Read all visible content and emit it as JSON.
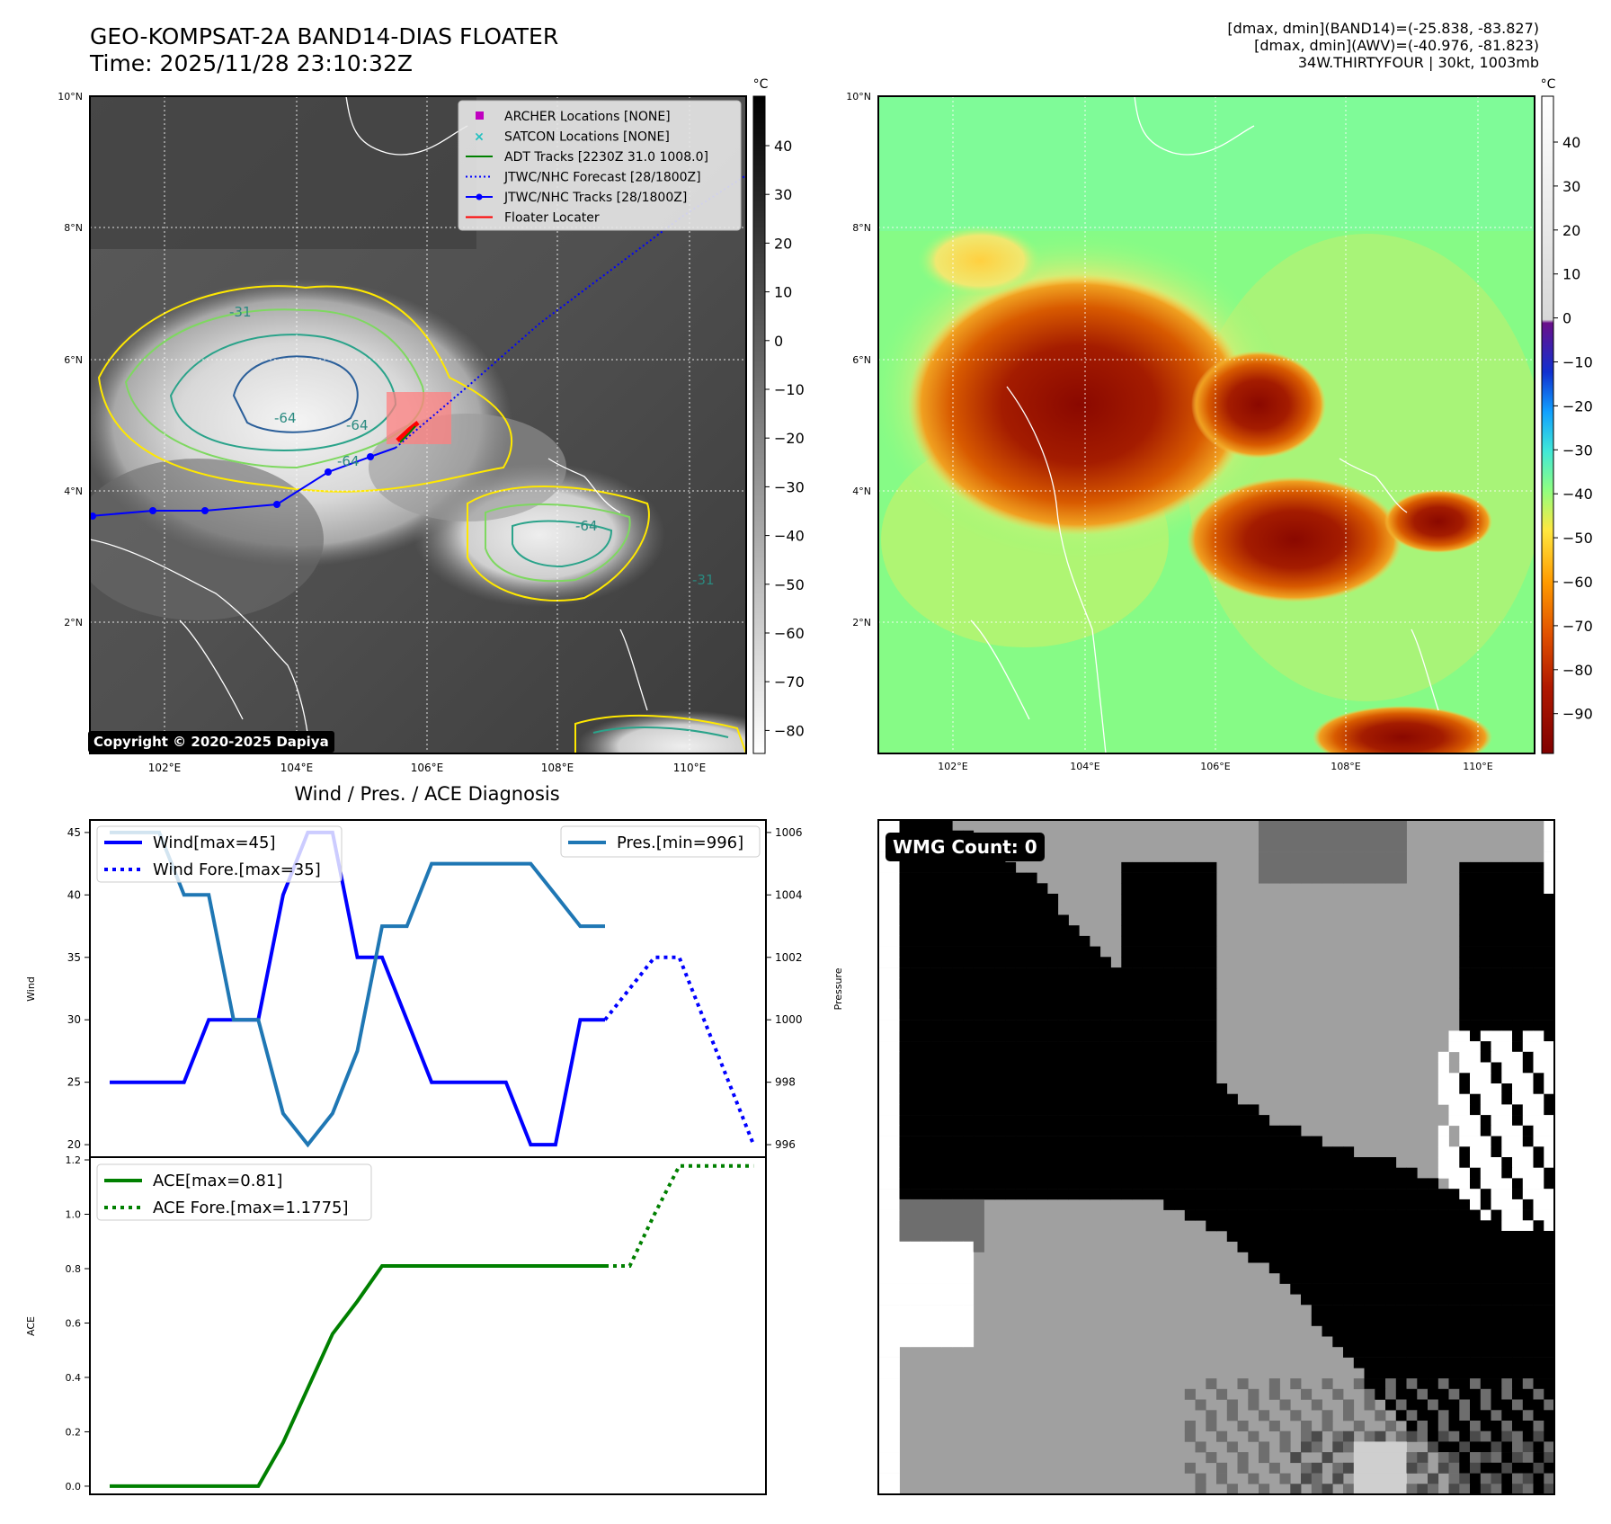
{
  "header": {
    "title_line1": "GEO-KOMPSAT-2A BAND14-DIAS FLOATER",
    "title_line2": "Time: 2025/11/28 23:10:32Z",
    "info_line1": "[dmax, dmin](BAND14)=(-25.838, -83.827)",
    "info_line2": "[dmax, dmin](AWV)=(-40.976, -81.823)",
    "info_line3": "34W.THIRTYFOUR | 30kt, 1003mb"
  },
  "copyright": "Copyright © 2020-2025 Dapiya",
  "wmg_label": "WMG Count: 0",
  "map_axes": {
    "lat_ticks": [
      "10°N",
      "8°N",
      "6°N",
      "4°N",
      "2°N"
    ],
    "lon_ticks": [
      "102°E",
      "104°E",
      "106°E",
      "108°E",
      "110°E"
    ]
  },
  "colorbar_ir": {
    "unit": "°C",
    "ticks": [
      "40",
      "30",
      "20",
      "10",
      "0",
      "−10",
      "−20",
      "−30",
      "−40",
      "−50",
      "−60",
      "−70",
      "−80"
    ]
  },
  "colorbar_awv": {
    "unit": "°C",
    "ticks": [
      "40",
      "30",
      "20",
      "10",
      "0",
      "−10",
      "−20",
      "−30",
      "−40",
      "−50",
      "−60",
      "−70",
      "−80",
      "−90"
    ]
  },
  "map_legend": [
    {
      "label": "ARCHER Locations [NONE]",
      "color": "#c000c0",
      "style": "square"
    },
    {
      "label": "SATCON Locations [NONE]",
      "color": "#20c0c0",
      "style": "x"
    },
    {
      "label": "ADT Tracks [2230Z 31.0 1008.0]",
      "color": "#008000",
      "style": "line"
    },
    {
      "label": "JTWC/NHC Forecast [28/1800Z]",
      "color": "#0000ff",
      "style": "dotted"
    },
    {
      "label": "JTWC/NHC Tracks [28/1800Z]",
      "color": "#0000ff",
      "style": "line-dot"
    },
    {
      "label": "Floater Locater",
      "color": "#ff0000",
      "style": "line"
    }
  ],
  "contour_labels": [
    "-31",
    "-64",
    "-64",
    "-64",
    "-64",
    "-31"
  ],
  "diag_title": "Wind / Pres. / ACE Diagnosis",
  "chart_data": [
    {
      "type": "line",
      "ylabel": "Wind",
      "y2label": "Pressure",
      "ylim": [
        19,
        46
      ],
      "y2lim": [
        995.6,
        1006.4
      ],
      "yticks": [
        "45",
        "40",
        "35",
        "30",
        "25",
        "20"
      ],
      "y2ticks": [
        "1006",
        "1004",
        "1002",
        "1000",
        "998",
        "996"
      ],
      "legend_left": [
        "Wind[max=45]",
        "Wind Fore.[max=35]"
      ],
      "legend_right": [
        "Pres.[min=996]"
      ],
      "series": [
        {
          "name": "Wind[max=45]",
          "axis": "left",
          "color": "#0000ff",
          "style": "solid",
          "x": [
            0,
            1,
            2,
            3,
            4,
            5,
            6,
            7,
            8,
            9,
            10,
            11,
            12,
            13,
            14,
            15,
            16,
            17,
            18,
            19,
            20
          ],
          "values": [
            25,
            25,
            25,
            25,
            30,
            30,
            30,
            40,
            45,
            45,
            35,
            35,
            30,
            25,
            25,
            25,
            25,
            20,
            20,
            30,
            30
          ]
        },
        {
          "name": "Wind Fore.[max=35]",
          "axis": "left",
          "color": "#0000ff",
          "style": "dotted",
          "x": [
            20,
            21,
            22,
            23,
            24,
            25,
            26
          ],
          "values": [
            30,
            32.5,
            35,
            35,
            30,
            25,
            20
          ]
        },
        {
          "name": "Pres.[min=996]",
          "axis": "right",
          "color": "#1f77b4",
          "style": "solid",
          "x": [
            0,
            1,
            2,
            3,
            4,
            5,
            6,
            7,
            8,
            9,
            10,
            11,
            12,
            13,
            14,
            15,
            16,
            17,
            18,
            19,
            20
          ],
          "values": [
            1006,
            1006,
            1006,
            1004,
            1004,
            1000,
            1000,
            997,
            996,
            997,
            999,
            1003,
            1003,
            1005,
            1005,
            1005,
            1005,
            1005,
            1004,
            1003,
            1003
          ]
        }
      ]
    },
    {
      "type": "line",
      "ylabel": "ACE",
      "ylim": [
        -0.03,
        1.21
      ],
      "yticks": [
        "1.2",
        "1.0",
        "0.8",
        "0.6",
        "0.4",
        "0.2",
        "0.0"
      ],
      "legend": [
        "ACE[max=0.81]",
        "ACE Fore.[max=1.1775]"
      ],
      "series": [
        {
          "name": "ACE[max=0.81]",
          "color": "#008000",
          "style": "solid",
          "x": [
            0,
            1,
            2,
            3,
            4,
            5,
            6,
            7,
            8,
            9,
            10,
            11,
            12,
            13,
            14,
            15,
            16,
            17,
            18,
            19,
            20
          ],
          "values": [
            0,
            0,
            0,
            0,
            0,
            0,
            0,
            0.16,
            0.36,
            0.56,
            0.68,
            0.81,
            0.81,
            0.81,
            0.81,
            0.81,
            0.81,
            0.81,
            0.81,
            0.81,
            0.81
          ]
        },
        {
          "name": "ACE Fore.[max=1.1775]",
          "color": "#008000",
          "style": "dotted",
          "x": [
            20,
            21,
            22,
            23,
            24,
            25,
            26
          ],
          "values": [
            0.81,
            0.81,
            1.0,
            1.1775,
            1.1775,
            1.1775,
            1.1775
          ]
        }
      ]
    }
  ]
}
